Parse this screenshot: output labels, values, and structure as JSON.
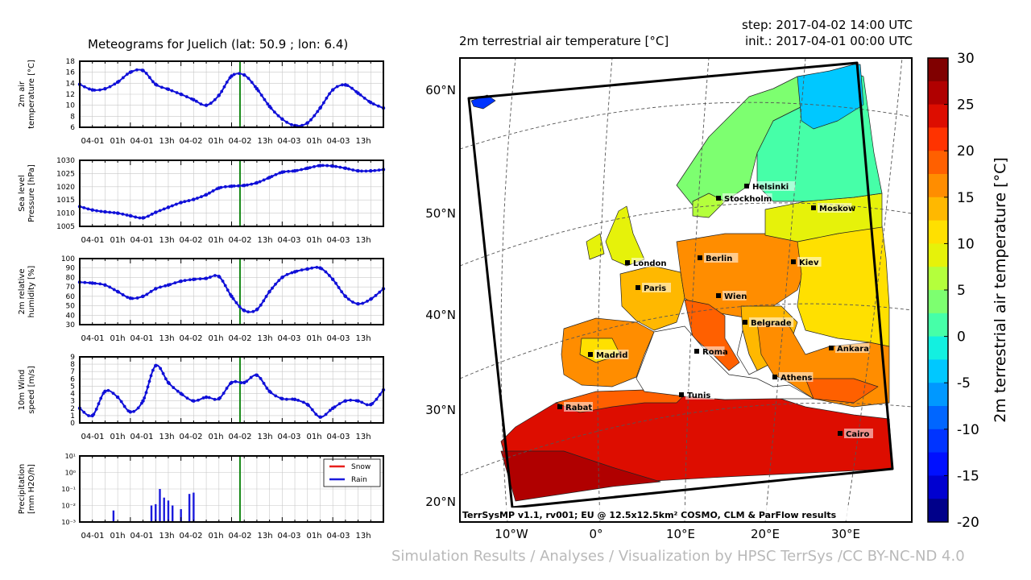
{
  "header": {
    "meteogram_title": "Meteograms for Juelich (lat: 50.9 ; lon: 6.4)",
    "map_title": "2m terrestrial air temperature [°C]",
    "step": "step: 2017-04-02 14:00 UTC",
    "init": "init.: 2017-04-01 00:00 UTC",
    "map_caption": "TerrSysMP v1.1, rv001; EU @ 12.5x12.5km² COSMO, CLM & ParFlow results",
    "credit": "Simulation Results / Analyses / Visualization by HPSC TerrSys /CC BY-NC-ND 4.0"
  },
  "chart_data": [
    {
      "type": "line",
      "ylabel": "2m air\ntemperature [°C]",
      "ylim": [
        6,
        18
      ],
      "yticks": [
        6,
        8,
        10,
        12,
        14,
        16,
        18
      ],
      "xticks": [
        "04-01 01h",
        "04-01 13h",
        "04-02 01h",
        "04-02 13h",
        "04-03 01h",
        "04-03 13h"
      ],
      "x_hours": [
        0,
        3,
        6,
        9,
        12,
        15,
        18,
        21,
        24,
        27,
        30,
        33,
        36,
        39,
        42,
        45,
        48,
        51,
        54,
        57,
        60,
        63,
        66,
        69,
        72
      ],
      "values": [
        13.8,
        12.8,
        13.0,
        14.2,
        16.0,
        16.3,
        13.8,
        12.9,
        12.0,
        11.0,
        10.0,
        11.8,
        15.3,
        15.5,
        13.0,
        9.8,
        7.5,
        6.3,
        6.8,
        9.5,
        12.8,
        13.7,
        12.2,
        10.5,
        9.5
      ],
      "current_hour": 38,
      "grid": true
    },
    {
      "type": "line",
      "ylabel": "Sea level\nPressure [hPa]",
      "ylim": [
        1005,
        1030
      ],
      "yticks": [
        1005,
        1010,
        1015,
        1020,
        1025,
        1030
      ],
      "xticks": [
        "04-01 01h",
        "04-01 13h",
        "04-02 01h",
        "04-02 13h",
        "04-03 01h",
        "04-03 13h"
      ],
      "x_hours": [
        0,
        3,
        6,
        9,
        12,
        15,
        18,
        21,
        24,
        27,
        30,
        33,
        36,
        39,
        42,
        45,
        48,
        51,
        54,
        57,
        60,
        63,
        66,
        69,
        72
      ],
      "values": [
        1012.5,
        1011.2,
        1010.5,
        1010.0,
        1009.0,
        1008.2,
        1010.3,
        1012.2,
        1014.0,
        1015.2,
        1017.0,
        1019.5,
        1020.2,
        1020.5,
        1021.5,
        1023.5,
        1025.5,
        1026.0,
        1027.0,
        1028.0,
        1027.8,
        1027.0,
        1026.0,
        1026.0,
        1026.5
      ],
      "current_hour": 38,
      "grid": true
    },
    {
      "type": "line",
      "ylabel": "2m relative\nhumidity [%]",
      "ylim": [
        30,
        100
      ],
      "yticks": [
        30,
        40,
        50,
        60,
        70,
        80,
        90,
        100
      ],
      "xticks": [
        "04-01 01h",
        "04-01 13h",
        "04-02 01h",
        "04-02 13h",
        "04-03 01h",
        "04-03 13h"
      ],
      "x_hours": [
        0,
        3,
        6,
        9,
        12,
        15,
        18,
        21,
        24,
        27,
        30,
        33,
        36,
        39,
        42,
        45,
        48,
        51,
        54,
        57,
        60,
        63,
        66,
        69,
        72
      ],
      "values": [
        75,
        74,
        72,
        65,
        58,
        60,
        68,
        72,
        76,
        78,
        79,
        81,
        60,
        45,
        46,
        65,
        80,
        86,
        89,
        90,
        78,
        60,
        52,
        57,
        68
      ],
      "current_hour": 38,
      "grid": true
    },
    {
      "type": "line",
      "ylabel": "10m Wind\nspeed [m/s]",
      "ylim": [
        0,
        9
      ],
      "yticks": [
        0,
        1,
        2,
        3,
        4,
        5,
        6,
        7,
        8,
        9
      ],
      "xticks": [
        "04-01 01h",
        "04-01 13h",
        "04-02 01h",
        "04-02 13h",
        "04-03 01h",
        "04-03 13h"
      ],
      "x_hours": [
        0,
        3,
        6,
        9,
        12,
        15,
        18,
        21,
        24,
        27,
        30,
        33,
        36,
        39,
        42,
        45,
        48,
        51,
        54,
        57,
        60,
        63,
        66,
        69,
        72
      ],
      "values": [
        2.0,
        1.0,
        4.3,
        3.5,
        1.5,
        3.0,
        7.8,
        5.5,
        4.0,
        3.0,
        3.5,
        3.3,
        5.5,
        5.5,
        6.5,
        4.3,
        3.3,
        3.2,
        2.5,
        0.8,
        2.0,
        3.0,
        3.0,
        2.5,
        4.5
      ],
      "current_hour": 38,
      "grid": true
    },
    {
      "type": "bar",
      "ylabel": "Precipitation\n[mm H2O/h]",
      "yscale": "log",
      "ylim": [
        0.001,
        10
      ],
      "yticks": [
        "10⁻³",
        "10⁻²",
        "10⁻¹",
        "10⁰",
        "10¹"
      ],
      "xticks": [
        "04-01 01h",
        "04-01 13h",
        "04-02 01h",
        "04-02 13h",
        "04-03 01h",
        "04-03 13h"
      ],
      "series": [
        {
          "name": "Snow",
          "color": "#e8201c",
          "x_hours": [],
          "values": []
        },
        {
          "name": "Rain",
          "color": "#1a1adc",
          "x_hours": [
            8,
            17,
            18,
            19,
            20,
            21,
            22,
            24,
            26,
            27
          ],
          "values": [
            0.005,
            0.01,
            0.012,
            0.1,
            0.03,
            0.02,
            0.01,
            0.006,
            0.05,
            0.06
          ]
        }
      ],
      "current_hour": 38,
      "grid": true,
      "legend": "top-right"
    },
    {
      "type": "heatmap",
      "title": "2m terrestrial air temperature [°C]",
      "lat_labels": [
        "20°N",
        "30°N",
        "40°N",
        "50°N",
        "60°N"
      ],
      "lon_labels": [
        "10°W",
        "0°",
        "10°E",
        "20°E",
        "30°E"
      ],
      "colorbar_label": "2m terrestrial air temperature [°C]",
      "colorbar_ticks": [
        30,
        25,
        20,
        15,
        10,
        5,
        0,
        -5,
        -10,
        -15,
        -20
      ],
      "colorbar_range": [
        -20,
        30
      ],
      "cities": [
        "Helsinki",
        "Stockholm",
        "Moskow",
        "London",
        "Berlin",
        "Kiev",
        "Paris",
        "Wien",
        "Belgrade",
        "Madrid",
        "Roma",
        "Ankara",
        "Athens",
        "Tunis",
        "Rabat",
        "Cairo"
      ]
    }
  ],
  "colors": {
    "line": "#1010d8",
    "current_time": "#1a8a1a",
    "grid": "#c8c8c8",
    "colorbar": [
      "#800000",
      "#b00000",
      "#dd0d00",
      "#ff3300",
      "#ff6000",
      "#ff8d00",
      "#ffb800",
      "#ffe000",
      "#e6f20a",
      "#b4ff3c",
      "#7dff70",
      "#46ffa8",
      "#13f0e0",
      "#00c8ff",
      "#0098ff",
      "#0066ff",
      "#0034ff",
      "#0010ff",
      "#0000d0",
      "#00008a"
    ]
  }
}
